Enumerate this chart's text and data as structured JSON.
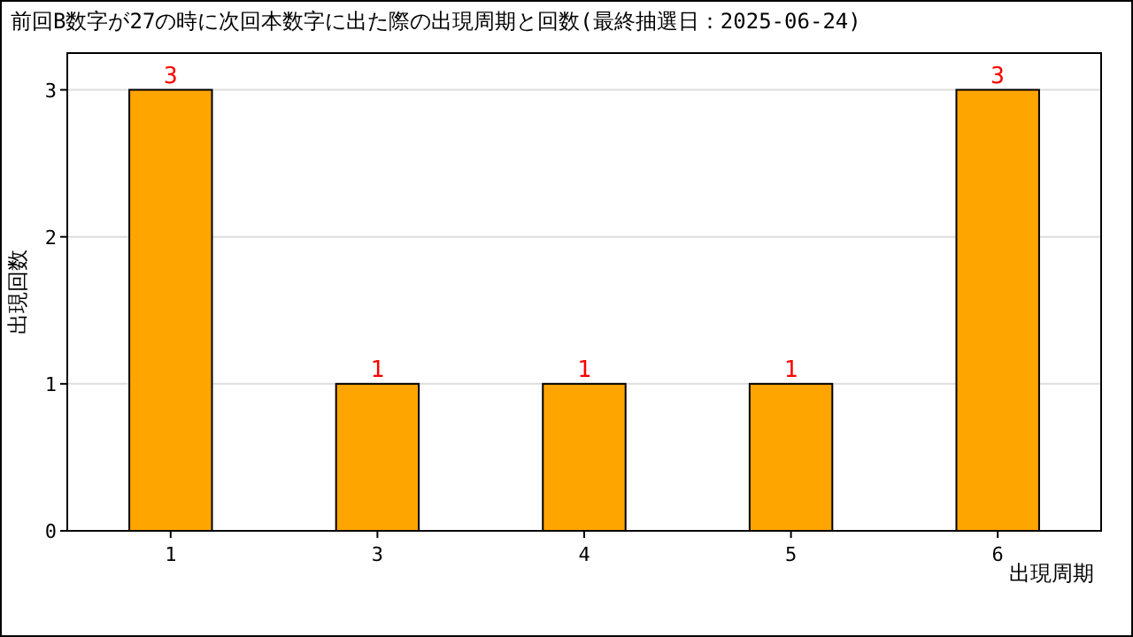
{
  "chart_data": {
    "type": "bar",
    "title": "前回B数字が27の時に次回本数字に出た際の出現周期と回数(最終抽選日：2025-06-24)",
    "xlabel": "出現周期",
    "ylabel": "出現回数",
    "categories": [
      "1",
      "3",
      "4",
      "5",
      "6"
    ],
    "values": [
      3,
      1,
      1,
      1,
      3
    ],
    "color": "#ffa500",
    "ylim": [
      0,
      3.25
    ],
    "yticks": [
      0,
      1,
      2,
      3
    ],
    "grid": "y",
    "data_labels": true
  }
}
